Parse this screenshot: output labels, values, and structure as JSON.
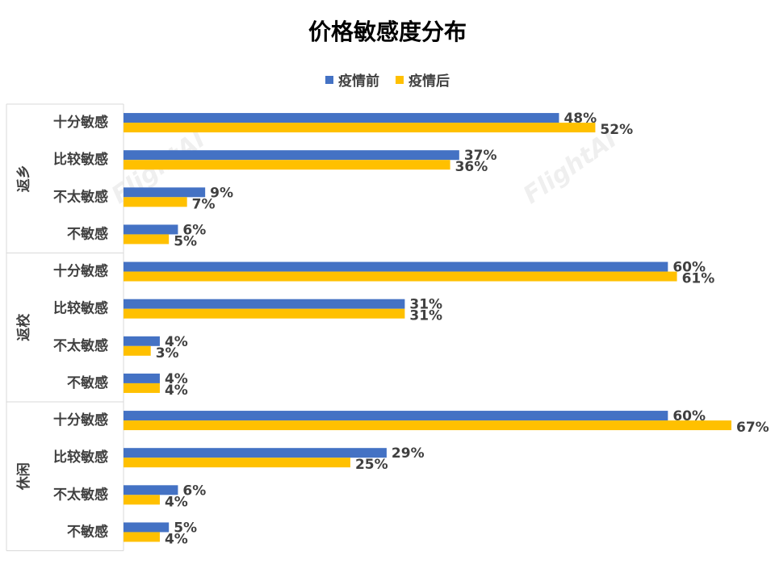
{
  "chart_data": {
    "type": "bar",
    "orientation": "horizontal",
    "title": "价格敏感度分布",
    "legend_position": "top",
    "grid": false,
    "xlim": [
      0,
      70
    ],
    "groups": [
      {
        "name": "返乡",
        "categories": [
          "十分敏感",
          "比较敏感",
          "不太敏感",
          "不敏感"
        ],
        "before": [
          48,
          37,
          9,
          6
        ],
        "after": [
          52,
          36,
          7,
          5
        ],
        "before_labels": [
          "48%",
          "37%",
          "9%",
          "6%"
        ],
        "after_labels": [
          "52%",
          "36%",
          "7%",
          "5%"
        ]
      },
      {
        "name": "返校",
        "categories": [
          "十分敏感",
          "比较敏感",
          "不太敏感",
          "不敏感"
        ],
        "before": [
          60,
          31,
          4,
          4
        ],
        "after": [
          61,
          31,
          3,
          4
        ],
        "before_labels": [
          "60%",
          "31%",
          "4%",
          "4%"
        ],
        "after_labels": [
          "61%",
          "31%",
          "3%",
          "4%"
        ]
      },
      {
        "name": "休闲",
        "categories": [
          "十分敏感",
          "比较敏感",
          "不太敏感",
          "不敏感"
        ],
        "before": [
          60,
          29,
          6,
          5
        ],
        "after": [
          67,
          25,
          4,
          4
        ],
        "before_labels": [
          "60%",
          "29%",
          "6%",
          "5%"
        ],
        "after_labels": [
          "67%",
          "25%",
          "4%",
          "4%"
        ]
      }
    ],
    "series": [
      {
        "name": "疫情前",
        "color": "#4472C4"
      },
      {
        "name": "疫情后",
        "color": "#FFC000"
      }
    ]
  },
  "watermark": "FlightAI"
}
